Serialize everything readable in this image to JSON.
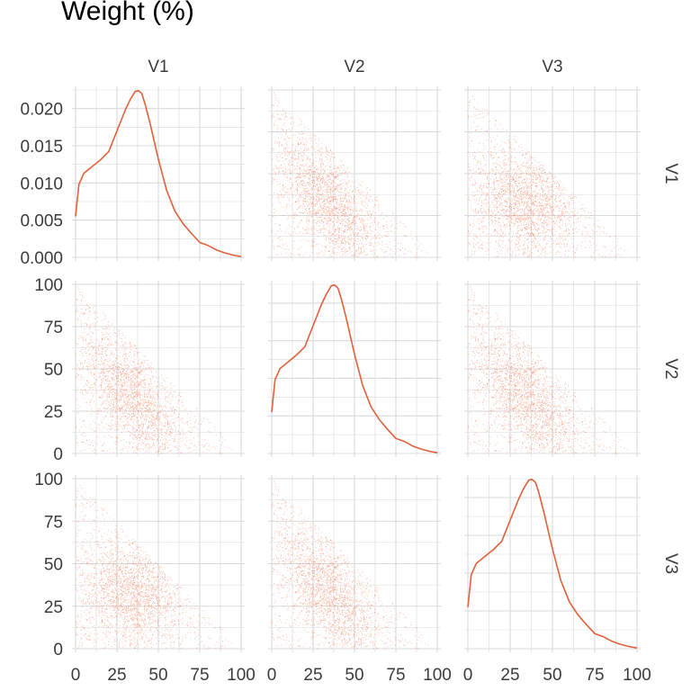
{
  "chart_data": {
    "type": "scatter",
    "title": "Weight (%)",
    "variables": [
      "V1",
      "V2",
      "V3"
    ],
    "point_color": "#F26D45",
    "line_color": "#E0603A",
    "grid_color": "#D9D9D9",
    "x": {
      "lim": [
        0,
        100
      ],
      "ticks": [
        0,
        25,
        50,
        75,
        100
      ],
      "tick_labels": [
        "0",
        "25",
        "50",
        "75",
        "100"
      ]
    },
    "y_scatter": {
      "lim": [
        0,
        100
      ],
      "ticks": [
        0,
        25,
        50,
        75,
        100
      ],
      "tick_labels": [
        "0",
        "25",
        "50",
        "75",
        "100"
      ]
    },
    "y_density": {
      "lim": [
        0,
        0.0225
      ],
      "ticks": [
        0,
        0.005,
        0.01,
        0.015,
        0.02
      ],
      "tick_labels": [
        "0.000",
        "0.005",
        "0.010",
        "0.015",
        "0.020"
      ]
    },
    "density_curve": {
      "x": [
        0,
        2,
        5,
        10,
        15,
        20,
        25,
        30,
        33,
        36,
        38,
        40,
        42,
        45,
        50,
        55,
        60,
        65,
        70,
        75,
        80,
        85,
        90,
        95,
        100
      ],
      "y": [
        0.0055,
        0.0098,
        0.0113,
        0.0122,
        0.0131,
        0.0142,
        0.017,
        0.0198,
        0.0212,
        0.0223,
        0.0224,
        0.022,
        0.0206,
        0.018,
        0.0132,
        0.009,
        0.0062,
        0.0045,
        0.0032,
        0.002,
        0.0016,
        0.001,
        0.0006,
        0.0003,
        0.0001
      ]
    },
    "scatter_note": "each off-diagonal panel shows compositional pairs satisfying x + y ≤ 100, densest near (33, 33)"
  }
}
